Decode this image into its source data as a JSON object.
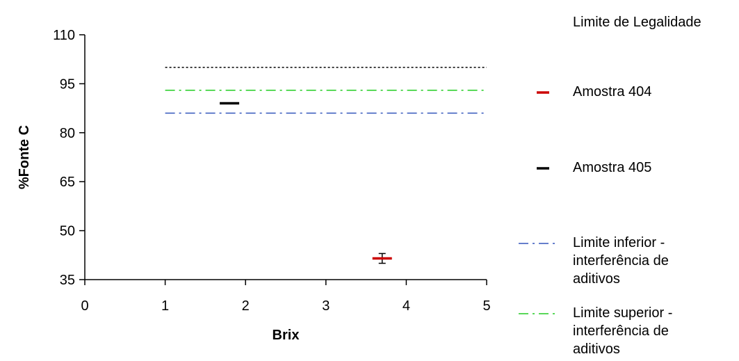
{
  "chart_data": {
    "type": "scatter",
    "xlabel": "Brix",
    "ylabel": "%Fonte C",
    "xlim": [
      0,
      5
    ],
    "ylim": [
      35,
      110
    ],
    "xticks": [
      "0",
      "1",
      "2",
      "3",
      "4",
      "5"
    ],
    "yticks": [
      "35",
      "50",
      "65",
      "80",
      "95",
      "110"
    ],
    "series": [
      {
        "name": "Amostra 404",
        "color": "#cc0000",
        "points": [
          {
            "x": 3.7,
            "y": 41.5,
            "y_low": 40,
            "y_high": 43
          }
        ]
      },
      {
        "name": "Amostra 405",
        "color": "#000000",
        "points": [
          {
            "x": 1.8,
            "y": 89,
            "y_low": 89,
            "y_high": 89
          }
        ]
      }
    ],
    "reference_lines": [
      {
        "name": "Limite de Legalidade",
        "y": 100,
        "x_start": 1,
        "x_end": 5,
        "color": "#000000",
        "style": "dotted"
      },
      {
        "name": "Limite superior - interferência de aditivos",
        "y": 93,
        "x_start": 1,
        "x_end": 5,
        "color": "#22cc22",
        "style": "dash-dot"
      },
      {
        "name": "Limite inferior - interferência de aditivos",
        "y": 86,
        "x_start": 1,
        "x_end": 5,
        "color": "#3355bb",
        "style": "dash-dot"
      }
    ],
    "legend": {
      "position": "right",
      "entries": [
        {
          "label_lines": [
            "Limite de Legalidade"
          ],
          "swatch": "none"
        },
        {
          "label_lines": [
            "Amostra 404"
          ],
          "swatch": "marker",
          "color": "#cc0000"
        },
        {
          "label_lines": [
            "Amostra 405"
          ],
          "swatch": "marker",
          "color": "#000000"
        },
        {
          "label_lines": [
            "Limite inferior -",
            "interferência de",
            "aditivos"
          ],
          "swatch": "dash-dot",
          "color": "#3355bb"
        },
        {
          "label_lines": [
            "Limite superior -",
            "interferência de",
            "aditivos"
          ],
          "swatch": "dash-dot",
          "color": "#22cc22"
        }
      ]
    }
  }
}
